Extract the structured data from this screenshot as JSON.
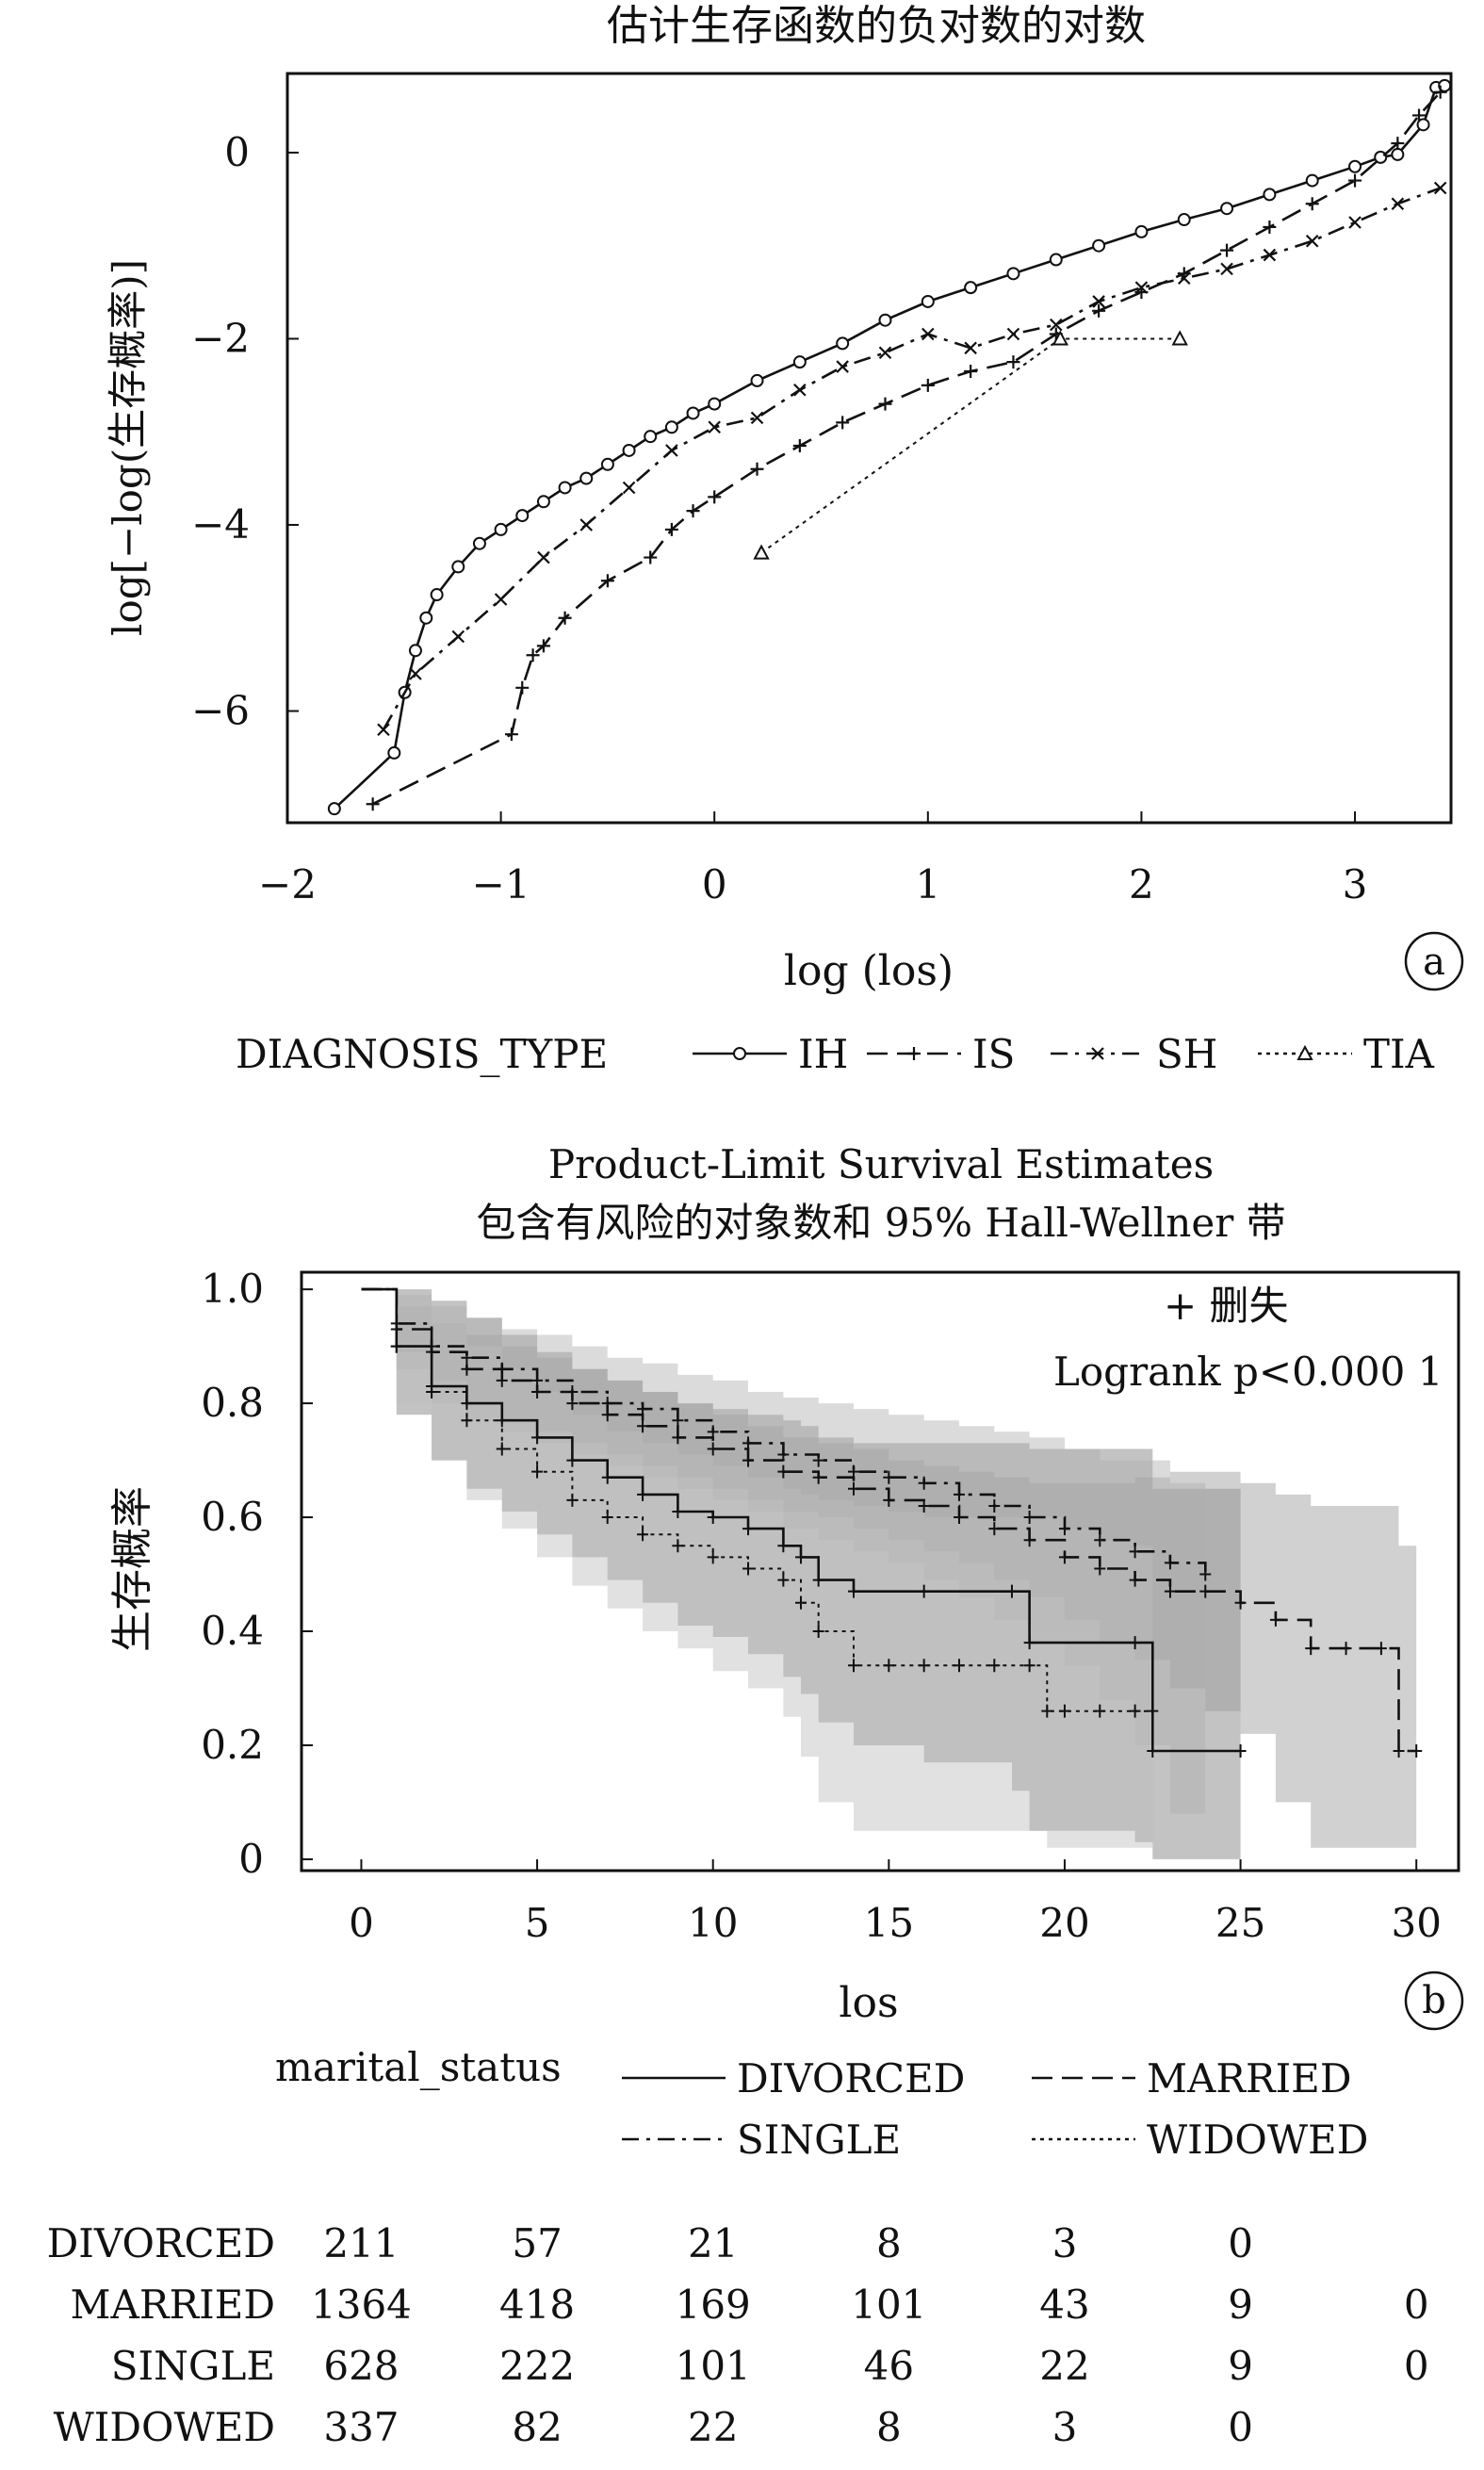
{
  "chart_data": [
    {
      "type": "line",
      "panel_label": "a",
      "title": "估计生存函数的负对数的对数",
      "xlabel": "log (los)",
      "ylabel": "log[−log(生存概率)]",
      "xlim": [
        -2.0,
        3.45
      ],
      "ylim": [
        -7.2,
        0.85
      ],
      "xticks": [
        -2,
        -1,
        0,
        1,
        2,
        3
      ],
      "xtick_labels": [
        "−2",
        "−1",
        "0",
        "1",
        "2",
        "3"
      ],
      "yticks": [
        0,
        -2,
        -4,
        -6
      ],
      "ytick_labels": [
        "0",
        "−2",
        "−4",
        "−6"
      ],
      "grid": false,
      "legend_title": "DIAGNOSIS_TYPE",
      "legend_position": "bottom",
      "series": [
        {
          "name": "IH",
          "marker": "circle",
          "dash": "solid",
          "x": [
            -1.78,
            -1.5,
            -1.45,
            -1.4,
            -1.35,
            -1.3,
            -1.2,
            -1.1,
            -1.0,
            -0.9,
            -0.8,
            -0.7,
            -0.6,
            -0.5,
            -0.4,
            -0.3,
            -0.2,
            -0.1,
            0.0,
            0.2,
            0.4,
            0.6,
            0.8,
            1.0,
            1.2,
            1.4,
            1.6,
            1.8,
            2.0,
            2.2,
            2.4,
            2.6,
            2.8,
            3.0,
            3.12,
            3.2,
            3.32,
            3.38,
            3.42
          ],
          "y": [
            -7.05,
            -6.45,
            -5.8,
            -5.35,
            -5.0,
            -4.75,
            -4.45,
            -4.2,
            -4.05,
            -3.9,
            -3.75,
            -3.6,
            -3.5,
            -3.35,
            -3.2,
            -3.05,
            -2.95,
            -2.8,
            -2.7,
            -2.45,
            -2.25,
            -2.05,
            -1.8,
            -1.6,
            -1.45,
            -1.3,
            -1.15,
            -1.0,
            -0.85,
            -0.72,
            -0.6,
            -0.45,
            -0.3,
            -0.15,
            -0.05,
            -0.02,
            0.3,
            0.7,
            0.72
          ]
        },
        {
          "name": "IS",
          "marker": "plus",
          "dash": "dash",
          "x": [
            -1.6,
            -0.95,
            -0.9,
            -0.85,
            -0.8,
            -0.7,
            -0.5,
            -0.3,
            -0.2,
            -0.1,
            0.0,
            0.2,
            0.4,
            0.6,
            0.8,
            1.0,
            1.2,
            1.4,
            1.6,
            1.8,
            2.0,
            2.2,
            2.4,
            2.6,
            2.8,
            3.0,
            3.2,
            3.3,
            3.4
          ],
          "y": [
            -7.0,
            -6.25,
            -5.75,
            -5.4,
            -5.3,
            -5.0,
            -4.6,
            -4.35,
            -4.05,
            -3.85,
            -3.7,
            -3.4,
            -3.15,
            -2.9,
            -2.7,
            -2.5,
            -2.35,
            -2.25,
            -1.95,
            -1.7,
            -1.5,
            -1.3,
            -1.05,
            -0.8,
            -0.55,
            -0.3,
            0.1,
            0.4,
            0.65
          ]
        },
        {
          "name": "SH",
          "marker": "x",
          "dash": "dashdot",
          "x": [
            -1.55,
            -1.4,
            -1.2,
            -1.0,
            -0.8,
            -0.6,
            -0.4,
            -0.2,
            0.0,
            0.2,
            0.4,
            0.6,
            0.8,
            1.0,
            1.2,
            1.4,
            1.6,
            1.8,
            2.0,
            2.2,
            2.4,
            2.6,
            2.8,
            3.0,
            3.2,
            3.4
          ],
          "y": [
            -6.2,
            -5.6,
            -5.2,
            -4.8,
            -4.35,
            -4.0,
            -3.6,
            -3.2,
            -2.95,
            -2.85,
            -2.55,
            -2.3,
            -2.15,
            -1.95,
            -2.1,
            -1.95,
            -1.85,
            -1.6,
            -1.45,
            -1.35,
            -1.25,
            -1.1,
            -0.95,
            -0.75,
            -0.55,
            -0.38
          ]
        },
        {
          "name": "TIA",
          "marker": "triangle",
          "dash": "dot",
          "x": [
            0.22,
            1.62,
            2.18
          ],
          "y": [
            -4.3,
            -2.0,
            -2.0
          ]
        }
      ]
    },
    {
      "type": "line",
      "panel_label": "b",
      "title": "Product-Limit Survival Estimates",
      "subtitle": "包含有风险的对象数和 95% Hall-Wellner 带",
      "xlabel": "los",
      "ylabel": "生存概率",
      "xlim": [
        -1.7,
        31.2
      ],
      "ylim": [
        -0.02,
        1.03
      ],
      "xticks": [
        0,
        5,
        10,
        15,
        20,
        25,
        30
      ],
      "xtick_labels": [
        "0",
        "5",
        "10",
        "15",
        "20",
        "25",
        "30"
      ],
      "yticks": [
        0,
        0.2,
        0.4,
        0.6,
        0.8,
        1.0
      ],
      "ytick_labels": [
        "0",
        "0.2",
        "0.4",
        "0.6",
        "0.8",
        "1.0"
      ],
      "grid": false,
      "annotations": [
        "+ 删失",
        "Logrank p<0.000 1"
      ],
      "legend_title": "marital_status",
      "legend_position": "bottom",
      "series": [
        {
          "name": "DIVORCED",
          "dash": "solid",
          "x": [
            0,
            1,
            2,
            3,
            4,
            5,
            6,
            7,
            8,
            9,
            10,
            11,
            12,
            12.5,
            13,
            14,
            16,
            18.5,
            19,
            22,
            22.5,
            25
          ],
          "y": [
            1.0,
            0.9,
            0.83,
            0.8,
            0.77,
            0.74,
            0.7,
            0.67,
            0.64,
            0.61,
            0.6,
            0.58,
            0.55,
            0.53,
            0.49,
            0.47,
            0.47,
            0.47,
            0.38,
            0.38,
            0.19,
            0.19
          ],
          "band_upper": [
            1.0,
            1.0,
            0.98,
            0.95,
            0.92,
            0.89,
            0.86,
            0.84,
            0.82,
            0.8,
            0.79,
            0.78,
            0.77,
            0.76,
            0.74,
            0.73,
            0.73,
            0.73,
            0.72,
            0.72,
            0.65,
            0.65
          ],
          "band_lower": [
            1.0,
            0.78,
            0.7,
            0.65,
            0.61,
            0.57,
            0.53,
            0.49,
            0.45,
            0.41,
            0.39,
            0.36,
            0.32,
            0.29,
            0.24,
            0.2,
            0.17,
            0.12,
            0.05,
            0.03,
            0.0,
            0.0
          ]
        },
        {
          "name": "MARRIED",
          "dash": "dash",
          "x": [
            0,
            1,
            2,
            3,
            4,
            5,
            6,
            7,
            8,
            9,
            10,
            11,
            12,
            13,
            14,
            15,
            16,
            17,
            18,
            19,
            20,
            21,
            22,
            23,
            24,
            25,
            26,
            27,
            28,
            29,
            29.5,
            30
          ],
          "y": [
            1.0,
            0.93,
            0.89,
            0.86,
            0.84,
            0.82,
            0.8,
            0.78,
            0.76,
            0.74,
            0.72,
            0.7,
            0.68,
            0.67,
            0.65,
            0.63,
            0.62,
            0.6,
            0.58,
            0.56,
            0.53,
            0.51,
            0.49,
            0.47,
            0.47,
            0.45,
            0.42,
            0.37,
            0.37,
            0.37,
            0.19,
            0.19
          ],
          "band_upper": [
            1.0,
            0.97,
            0.94,
            0.92,
            0.9,
            0.88,
            0.86,
            0.84,
            0.82,
            0.8,
            0.78,
            0.76,
            0.74,
            0.73,
            0.72,
            0.7,
            0.69,
            0.68,
            0.67,
            0.66,
            0.66,
            0.66,
            0.67,
            0.68,
            0.68,
            0.66,
            0.64,
            0.62,
            0.62,
            0.62,
            0.55,
            0.55
          ],
          "band_lower": [
            1.0,
            0.89,
            0.84,
            0.8,
            0.77,
            0.75,
            0.73,
            0.71,
            0.69,
            0.67,
            0.65,
            0.63,
            0.61,
            0.6,
            0.58,
            0.56,
            0.54,
            0.52,
            0.49,
            0.46,
            0.42,
            0.38,
            0.35,
            0.3,
            0.26,
            0.22,
            0.1,
            0.02,
            0.02,
            0.02,
            0.02,
            0.02
          ]
        },
        {
          "name": "SINGLE",
          "dash": "dashdot",
          "x": [
            0,
            1,
            2,
            3,
            4,
            5,
            6,
            7,
            8,
            9,
            10,
            11,
            12,
            13,
            14,
            15,
            16,
            17,
            18,
            19,
            20,
            21,
            22,
            23,
            24
          ],
          "y": [
            1.0,
            0.94,
            0.9,
            0.88,
            0.86,
            0.84,
            0.82,
            0.8,
            0.79,
            0.77,
            0.75,
            0.73,
            0.71,
            0.7,
            0.68,
            0.67,
            0.66,
            0.64,
            0.62,
            0.6,
            0.58,
            0.56,
            0.54,
            0.52,
            0.5
          ],
          "band_upper": [
            1.0,
            0.99,
            0.97,
            0.95,
            0.93,
            0.92,
            0.9,
            0.88,
            0.87,
            0.85,
            0.84,
            0.82,
            0.81,
            0.8,
            0.79,
            0.78,
            0.77,
            0.76,
            0.75,
            0.74,
            0.72,
            0.7,
            0.7,
            0.66,
            0.6
          ],
          "band_lower": [
            1.0,
            0.86,
            0.8,
            0.77,
            0.75,
            0.73,
            0.71,
            0.69,
            0.67,
            0.65,
            0.63,
            0.61,
            0.58,
            0.56,
            0.54,
            0.52,
            0.49,
            0.46,
            0.42,
            0.38,
            0.34,
            0.28,
            0.2,
            0.08,
            0.06
          ]
        },
        {
          "name": "WIDOWED",
          "dash": "dot",
          "x": [
            0,
            1,
            2,
            3,
            4,
            5,
            6,
            7,
            8,
            9,
            10,
            11,
            12,
            12.5,
            13,
            14,
            15,
            16,
            17,
            18,
            19,
            19.5,
            20,
            21,
            22,
            22.5
          ],
          "y": [
            1.0,
            0.9,
            0.82,
            0.77,
            0.72,
            0.68,
            0.63,
            0.6,
            0.57,
            0.55,
            0.53,
            0.51,
            0.49,
            0.45,
            0.4,
            0.34,
            0.34,
            0.34,
            0.34,
            0.34,
            0.34,
            0.26,
            0.26,
            0.26,
            0.26,
            0.26
          ],
          "band_upper": [
            1.0,
            0.98,
            0.94,
            0.9,
            0.86,
            0.82,
            0.78,
            0.75,
            0.73,
            0.71,
            0.69,
            0.67,
            0.65,
            0.64,
            0.63,
            0.62,
            0.61,
            0.6,
            0.6,
            0.6,
            0.6,
            0.6,
            0.58,
            0.56,
            0.55,
            0.55
          ],
          "band_lower": [
            1.0,
            0.8,
            0.7,
            0.63,
            0.58,
            0.53,
            0.48,
            0.44,
            0.4,
            0.37,
            0.33,
            0.3,
            0.25,
            0.18,
            0.1,
            0.05,
            0.05,
            0.05,
            0.05,
            0.05,
            0.05,
            0.02,
            0.02,
            0.02,
            0.02,
            0.02
          ]
        }
      ],
      "at_risk": {
        "x": [
          0,
          5,
          10,
          15,
          20,
          25,
          30
        ],
        "rows": [
          {
            "name": "DIVORCED",
            "values": [
              "211",
              "57",
              "21",
              "8",
              "3",
              "0",
              ""
            ]
          },
          {
            "name": "MARRIED",
            "values": [
              "1364",
              "418",
              "169",
              "101",
              "43",
              "9",
              "0"
            ]
          },
          {
            "name": "SINGLE",
            "values": [
              "628",
              "222",
              "101",
              "46",
              "22",
              "9",
              "0"
            ]
          },
          {
            "name": "WIDOWED",
            "values": [
              "337",
              "82",
              "22",
              "8",
              "3",
              "0",
              ""
            ]
          }
        ]
      }
    }
  ]
}
